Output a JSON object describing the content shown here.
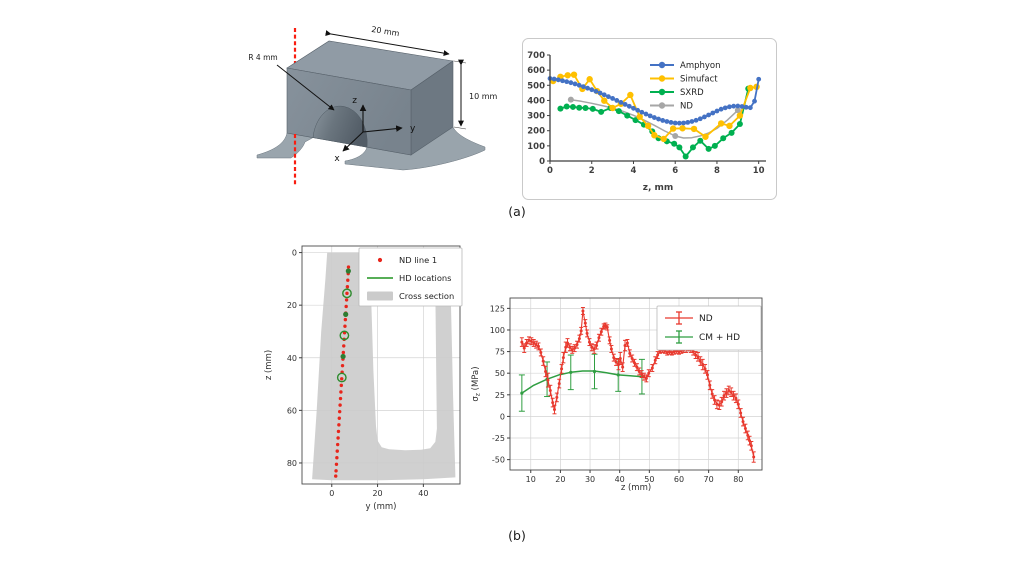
{
  "figure": {
    "panel_a_label": "(a)",
    "panel_b_label": "(b)"
  },
  "model3d": {
    "labels": {
      "width": "20 mm",
      "height": "10 mm",
      "radius": "R 4 mm",
      "axis_x": "x",
      "axis_y": "y",
      "axis_z": "z"
    },
    "centerline_color": "#f91d10"
  },
  "chart_data": [
    {
      "id": "residual-stress-comparison",
      "type": "line",
      "title": "",
      "xlabel": "z, mm",
      "ylabel": "",
      "xlim": [
        0,
        10.35
      ],
      "ylim": [
        0,
        700
      ],
      "xticks": [
        0,
        2,
        4,
        6,
        8,
        10
      ],
      "yticks": [
        0,
        100,
        200,
        300,
        400,
        500,
        600,
        700
      ],
      "grid": false,
      "legend_position": "upper right",
      "legend": [
        {
          "label": "Amphyon",
          "glyph": "line-marker",
          "color": "#4472c4"
        },
        {
          "label": "Simufact",
          "glyph": "line-marker",
          "color": "#ffc000"
        },
        {
          "label": "SXRD",
          "glyph": "line-marker",
          "color": "#00b050"
        },
        {
          "label": "ND",
          "glyph": "line-marker",
          "color": "#a6a6a6"
        }
      ],
      "series": [
        {
          "name": "ND",
          "color": "#a6a6a6",
          "lw": 1.5,
          "marker": true,
          "ms": 3,
          "x": [
            1,
            3,
            6,
            9
          ],
          "values": [
            405,
            350,
            165,
            335
          ],
          "line_x": [
            1,
            1.5,
            2,
            2.5,
            3,
            3.5,
            4,
            4.5,
            5,
            5.5,
            6,
            6.4,
            6.8,
            7.2,
            7.6,
            8,
            8.5,
            9
          ],
          "line_values": [
            405,
            394,
            381,
            366,
            350,
            328,
            302,
            270,
            236,
            198,
            165,
            152,
            154,
            166,
            185,
            215,
            270,
            335
          ]
        },
        {
          "name": "SXRD",
          "color": "#00b050",
          "lw": 1.8,
          "marker": true,
          "ms": 3,
          "x": [
            0.5,
            0.8,
            1.1,
            1.4,
            1.7,
            2.05,
            2.45,
            2.9,
            3.3,
            3.7,
            4.1,
            4.5,
            4.9,
            5.2,
            5.6,
            5.95,
            6.2,
            6.5,
            6.85,
            7.2,
            7.6,
            7.9,
            8.3,
            8.7,
            9.1,
            9.5
          ],
          "values": [
            346,
            360,
            357,
            352,
            350,
            344,
            324,
            350,
            329,
            300,
            270,
            240,
            196,
            150,
            130,
            114,
            90,
            30,
            90,
            134,
            80,
            100,
            150,
            186,
            244,
            478
          ]
        },
        {
          "name": "Simufact",
          "color": "#ffc000",
          "lw": 1.8,
          "marker": true,
          "ms": 3.2,
          "x": [
            0.15,
            0.5,
            0.85,
            1.15,
            1.55,
            1.9,
            2.25,
            2.6,
            3.0,
            3.4,
            3.85,
            4.3,
            4.7,
            5.0,
            5.45,
            5.9,
            6.35,
            6.9,
            7.45,
            8.2,
            8.6,
            9.1,
            9.6,
            9.9
          ],
          "values": [
            528,
            556,
            566,
            570,
            476,
            540,
            462,
            398,
            350,
            378,
            436,
            292,
            232,
            170,
            146,
            214,
            216,
            212,
            160,
            248,
            232,
            300,
            482,
            490
          ]
        },
        {
          "name": "Amphyon",
          "color": "#4472c4",
          "lw": 1.8,
          "marker": true,
          "ms": 2.4,
          "x": [
            0,
            0.2,
            0.4,
            0.6,
            0.8,
            1,
            1.2,
            1.4,
            1.6,
            1.8,
            2,
            2.2,
            2.4,
            2.6,
            2.8,
            3,
            3.2,
            3.4,
            3.6,
            3.8,
            4,
            4.2,
            4.4,
            4.6,
            4.8,
            5,
            5.2,
            5.4,
            5.6,
            5.8,
            6,
            6.2,
            6.4,
            6.6,
            6.8,
            7,
            7.2,
            7.4,
            7.6,
            7.8,
            8,
            8.2,
            8.4,
            8.6,
            8.8,
            9,
            9.2,
            9.4,
            9.6,
            9.8,
            10
          ],
          "values": [
            545,
            541,
            536,
            530,
            524,
            517,
            509,
            500,
            491,
            481,
            471,
            460,
            449,
            437,
            425,
            413,
            400,
            387,
            374,
            361,
            348,
            335,
            322,
            310,
            298,
            287,
            277,
            268,
            261,
            255,
            251,
            250,
            251,
            255,
            261,
            269,
            279,
            291,
            304,
            317,
            330,
            342,
            351,
            358,
            362,
            363,
            360,
            355,
            352,
            395,
            540
          ]
        }
      ]
    },
    {
      "id": "measurement-locations-map",
      "type": "scatter",
      "title": "",
      "xlabel": "y (mm)",
      "ylabel": "z (mm)",
      "xlim": [
        -13,
        56
      ],
      "ylim": [
        88,
        -2.5
      ],
      "xticks": [
        0,
        20,
        40
      ],
      "yticks": [
        0,
        20,
        40,
        60,
        80
      ],
      "grid": true,
      "legend_position": "upper right",
      "legend": [
        {
          "label": "ND line 1",
          "glyph": "dot",
          "color": "#e8251b"
        },
        {
          "label": "HD locations",
          "glyph": "line",
          "color": "#3fa33f"
        },
        {
          "label": "Cross section",
          "glyph": "patch",
          "color": "#cbcbcb"
        }
      ],
      "cross_section": {
        "color": "#cbcbcb",
        "opacity": 0.9,
        "points": [
          [
            -2,
            0
          ],
          [
            16.5,
            0
          ],
          [
            17.3,
            20
          ],
          [
            18.2,
            45
          ],
          [
            19.3,
            66
          ],
          [
            20,
            71.5
          ],
          [
            21.8,
            74
          ],
          [
            25,
            74.8
          ],
          [
            32,
            75.2
          ],
          [
            39,
            75
          ],
          [
            43,
            74.4
          ],
          [
            45.2,
            72
          ],
          [
            45.9,
            67
          ],
          [
            45.6,
            45
          ],
          [
            45.3,
            20
          ],
          [
            45.2,
            0
          ],
          [
            51.5,
            0
          ],
          [
            52.2,
            25
          ],
          [
            53,
            55
          ],
          [
            53.8,
            80
          ],
          [
            54,
            85.5
          ],
          [
            40,
            86.2
          ],
          [
            20,
            86.6
          ],
          [
            0,
            86.6
          ],
          [
            -8.6,
            86.2
          ],
          [
            -6.6,
            60
          ],
          [
            -4.6,
            30
          ],
          [
            -2.8,
            10
          ]
        ]
      },
      "series": [
        {
          "name": "ND line 1",
          "color": "#e8251b",
          "type": "dots",
          "ms": 1.7,
          "x": [
            7.3,
            7.17,
            7.0,
            6.82,
            6.64,
            6.47,
            6.29,
            6.11,
            5.94,
            5.76,
            5.58,
            5.41,
            5.23,
            5.05,
            4.88,
            4.7,
            4.52,
            4.35,
            4.17,
            3.99,
            3.82,
            3.64,
            3.46,
            3.29,
            3.11,
            2.93,
            2.76,
            2.58,
            2.4,
            2.23,
            2.05,
            1.87,
            1.73
          ],
          "values": [
            5.5,
            8,
            10.5,
            13,
            15.5,
            18,
            20.5,
            23,
            25.5,
            28,
            30.5,
            33,
            35.5,
            38,
            40.5,
            43,
            45.5,
            48,
            50.5,
            53,
            55.5,
            58,
            60.5,
            63,
            65.5,
            68,
            70.5,
            73,
            75.5,
            78,
            80.5,
            83,
            85
          ]
        },
        {
          "name": "HD open circles",
          "color": "#2e8b2e",
          "type": "open-circles",
          "ms": 4.2,
          "x": [
            6.64,
            5.51,
            4.38
          ],
          "values": [
            15.5,
            31.5,
            47.5
          ]
        },
        {
          "name": "HD filled dots",
          "color": "#2e7d32",
          "type": "dots",
          "ms": 2.6,
          "x": [
            7.24,
            6.08,
            4.95
          ],
          "values": [
            7,
            23.5,
            39.5
          ]
        }
      ]
    },
    {
      "id": "stress-profile",
      "type": "line",
      "title": "",
      "xlabel": "z (mm)",
      "ylabel": {
        "main": "σ",
        "sub": "z",
        "rest": " (MPa)"
      },
      "xlim": [
        3,
        88
      ],
      "ylim": [
        -62,
        137
      ],
      "xticks": [
        10,
        20,
        30,
        40,
        50,
        60,
        70,
        80
      ],
      "yticks": [
        -50,
        -25,
        0,
        25,
        50,
        75,
        100,
        125
      ],
      "grid": true,
      "legend_position": "upper right",
      "legend": [
        {
          "label": "ND",
          "glyph": "errorbar",
          "color": "#e8392e"
        },
        {
          "label": "CM + HD",
          "glyph": "errorbar",
          "color": "#2f9e41"
        }
      ],
      "series": [
        {
          "name": "CM + HD",
          "color": "#2f9e41",
          "lw": 1.5,
          "marker": true,
          "ms": 1.6,
          "cap": 3,
          "x": [
            7,
            15.5,
            23.5,
            31.5,
            39.5,
            47.5
          ],
          "values": [
            27,
            43,
            51,
            52,
            48,
            46
          ],
          "yerr": [
            21,
            20,
            20,
            20,
            19,
            20
          ],
          "line_x": [
            7,
            11,
            15.5,
            19.5,
            23.5,
            27.5,
            31.5,
            35.5,
            39.5,
            43.5,
            47.5
          ],
          "line_values": [
            27,
            36,
            43,
            48,
            51,
            52.5,
            52.5,
            50.5,
            48,
            47,
            46
          ]
        },
        {
          "name": "ND",
          "color": "#e8392e",
          "lw": 1.1,
          "marker": true,
          "ms": 1.5,
          "cap": 2,
          "x": [
            7,
            7.8,
            8.6,
            9.4,
            10.2,
            11,
            11.8,
            12.6,
            13.4,
            14.2,
            15,
            15.8,
            16.6,
            17.4,
            18,
            18.8,
            19.6,
            20.4,
            21,
            21.8,
            22.4,
            23.2,
            24,
            24.8,
            25.6,
            26.4,
            27,
            27.6,
            28.4,
            29,
            29.8,
            30.6,
            31.4,
            32.2,
            33,
            33.8,
            34.6,
            35.2,
            35.8,
            36.6,
            37.2,
            38,
            38.8,
            39.6,
            40.2,
            41,
            41.8,
            42.6,
            43.4,
            44.2,
            45,
            45.8,
            46.6,
            47.4,
            48.2,
            49,
            49.8,
            51,
            52,
            52.8,
            53.6,
            54.4,
            55.2,
            56,
            56.8,
            57.6,
            58.4,
            59.2,
            60,
            60.8,
            61.6,
            62.4,
            63.2,
            64,
            64.8,
            65.6,
            66.4,
            67.2,
            68,
            68.8,
            69.6,
            70.4,
            71.2,
            72,
            72.8,
            73.6,
            74.4,
            75.2,
            76,
            76.8,
            77.6,
            78.4,
            79.2,
            80,
            80.8,
            81.6,
            82.4,
            83.2,
            83.8,
            84.4,
            85.2
          ],
          "values": [
            86,
            79,
            85,
            88,
            87,
            85,
            83,
            81,
            74,
            64,
            52,
            42,
            30,
            16,
            8,
            22,
            38,
            55,
            68,
            80,
            85,
            80,
            77,
            79,
            83,
            90,
            99,
            122,
            108,
            96,
            86,
            80,
            78,
            82,
            91,
            98,
            104,
            105,
            103,
            88,
            78,
            68,
            63,
            60,
            67,
            57,
            82,
            85,
            73,
            67,
            62,
            57,
            52,
            49,
            46,
            44,
            50,
            56,
            65,
            71,
            76,
            77,
            76,
            74,
            75,
            74,
            75,
            76,
            75,
            76,
            77,
            78,
            80,
            78,
            75,
            71,
            69,
            64,
            60,
            55,
            48,
            36,
            26,
            19,
            14,
            13,
            17,
            24,
            27,
            30,
            28,
            24,
            21,
            14,
            4,
            -6,
            -14,
            -22,
            -28,
            -34,
            -47
          ],
          "yerr": [
            5,
            5,
            4,
            4,
            4,
            4,
            4,
            4,
            4,
            5,
            6,
            8,
            6,
            5,
            5,
            5,
            5,
            5,
            6,
            6,
            5,
            4,
            4,
            4,
            4,
            4,
            4,
            4,
            4,
            4,
            4,
            4,
            5,
            4,
            4,
            4,
            3,
            3,
            3,
            4,
            4,
            4,
            4,
            6,
            7,
            5,
            6,
            4,
            4,
            4,
            4,
            4,
            4,
            4,
            4,
            4,
            4,
            4,
            4,
            4,
            3,
            3,
            3,
            3,
            3,
            3,
            3,
            3,
            3,
            3,
            3,
            4,
            4,
            4,
            4,
            4,
            5,
            5,
            6,
            5,
            5,
            5,
            5,
            5,
            5,
            5,
            5,
            5,
            5,
            5,
            5,
            5,
            5,
            5,
            5,
            5,
            5,
            5,
            5,
            5,
            6
          ]
        }
      ]
    }
  ]
}
